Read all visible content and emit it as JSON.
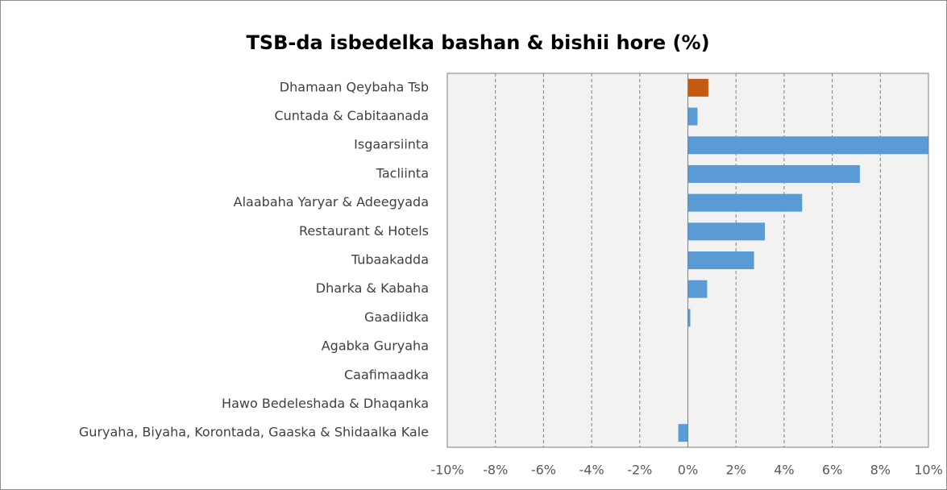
{
  "chart_data": {
    "type": "bar",
    "orientation": "horizontal",
    "title": "TSB-da isbedelka bashan & bishii hore (%)",
    "categories": [
      "Dhamaan Qeybaha  Tsb",
      "Cuntada & Cabitaanada",
      "Isgaarsiinta",
      "Tacliinta",
      "Alaabaha Yaryar & Adeegyada",
      "Restaurant & Hotels",
      "Tubaakadda",
      "Dharka & Kabaha",
      "Gaadiidka",
      "Agabka Guryaha",
      "Caafimaadka",
      "Hawo Bedeleshada & Dhaqanka",
      "Guryaha, Biyaha, Korontada, Gaaska & Shidaalka Kale"
    ],
    "values": [
      0.85,
      0.4,
      10,
      7.15,
      4.75,
      3.2,
      2.75,
      0.8,
      0.1,
      0,
      0,
      0,
      -0.4
    ],
    "colors": [
      "#c55a11",
      "#5b9bd5",
      "#5b9bd5",
      "#5b9bd5",
      "#5b9bd5",
      "#5b9bd5",
      "#5b9bd5",
      "#5b9bd5",
      "#5b9bd5",
      "#5b9bd5",
      "#5b9bd5",
      "#5b9bd5",
      "#5b9bd5"
    ],
    "xlim": [
      -10,
      10
    ],
    "xticks": [
      {
        "value": -10,
        "label": "-10%"
      },
      {
        "value": -8,
        "label": "-8%"
      },
      {
        "value": -6,
        "label": "-6%"
      },
      {
        "value": -4,
        "label": "-4%"
      },
      {
        "value": -2,
        "label": "-2%"
      },
      {
        "value": 0,
        "label": "0%"
      },
      {
        "value": 2,
        "label": "2%"
      },
      {
        "value": 4,
        "label": "4%"
      },
      {
        "value": 6,
        "label": "6%"
      },
      {
        "value": 8,
        "label": "8%"
      },
      {
        "value": 10,
        "label": "10%"
      }
    ],
    "grid": true
  }
}
